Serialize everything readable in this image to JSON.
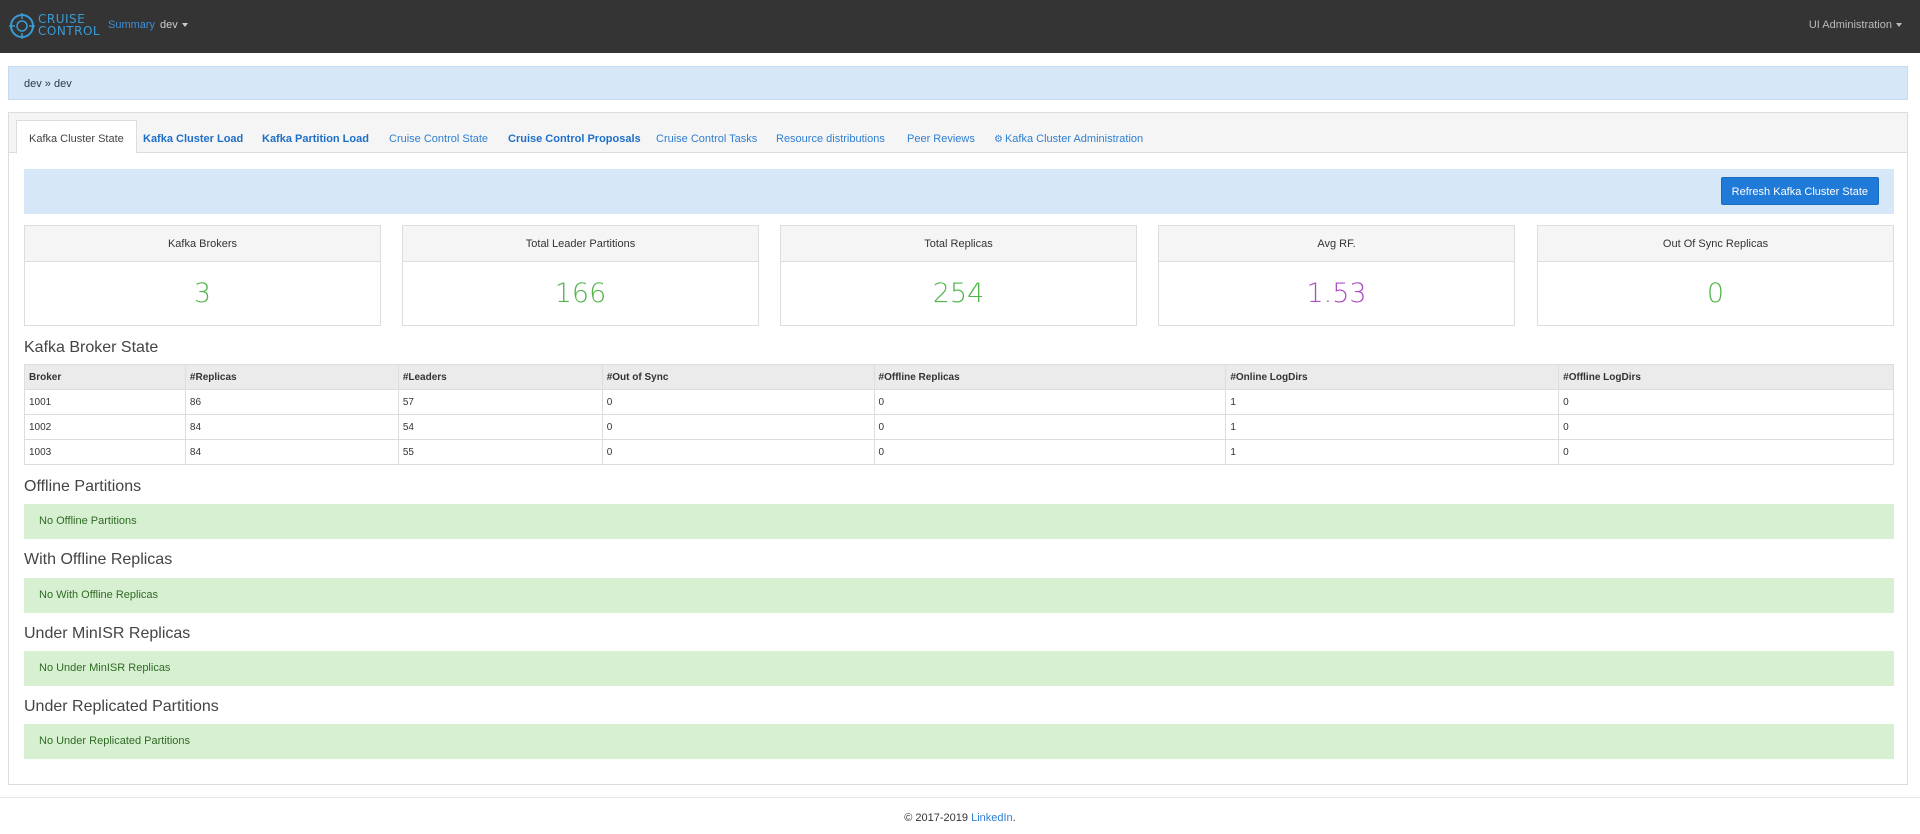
{
  "navbar": {
    "logo_text_1": "CRUISE",
    "logo_text_2": "CONTROL",
    "summary_label": "Summary",
    "env_label": "dev",
    "admin_label": "UI Administration"
  },
  "breadcrumb": "dev » dev",
  "tabs": [
    {
      "label": "Kafka Cluster State"
    },
    {
      "label": "Kafka Cluster Load"
    },
    {
      "label": "Kafka Partition Load"
    },
    {
      "label": "Cruise Control State"
    },
    {
      "label": "Cruise Control Proposals"
    },
    {
      "label": "Cruise Control Tasks"
    },
    {
      "label": "Resource distributions"
    },
    {
      "label": "Peer Reviews"
    },
    {
      "label": "Kafka Cluster Administration"
    }
  ],
  "refresh_label": "Refresh Kafka Cluster State",
  "cards": [
    {
      "title": "Kafka Brokers",
      "value": "3"
    },
    {
      "title": "Total Leader Partitions",
      "value": "166"
    },
    {
      "title": "Total Replicas",
      "value": "254"
    },
    {
      "title": "Avg RF.",
      "value": "1.53"
    },
    {
      "title": "Out Of Sync Replicas",
      "value": "0"
    }
  ],
  "broker_state": {
    "title": "Kafka Broker State",
    "headers": [
      "Broker",
      "#Replicas",
      "#Leaders",
      "#Out of Sync",
      "#Offline Replicas",
      "#Online LogDirs",
      "#Offline LogDirs"
    ],
    "rows": [
      [
        "1001",
        "86",
        "57",
        "0",
        "0",
        "1",
        "0"
      ],
      [
        "1002",
        "84",
        "54",
        "0",
        "0",
        "1",
        "0"
      ],
      [
        "1003",
        "84",
        "55",
        "0",
        "0",
        "1",
        "0"
      ]
    ]
  },
  "sections": [
    {
      "title": "Offline Partitions",
      "message": "No Offline Partitions"
    },
    {
      "title": "With Offline Replicas",
      "message": "No With Offline Replicas"
    },
    {
      "title": "Under MinISR Replicas",
      "message": "No Under MinISR Replicas"
    },
    {
      "title": "Under Replicated Partitions",
      "message": "No Under Replicated Partitions"
    }
  ],
  "footer": {
    "copyright": "© 2017-2019 ",
    "link": "LinkedIn",
    "suffix": "."
  },
  "colors": {
    "navbar": "#343434",
    "accent": "#1f7ad8",
    "value_green": "#52b54b",
    "value_purple": "#ae4cc4",
    "info_bg": "#d6e8f8",
    "success_bg": "#d8f0d2"
  }
}
